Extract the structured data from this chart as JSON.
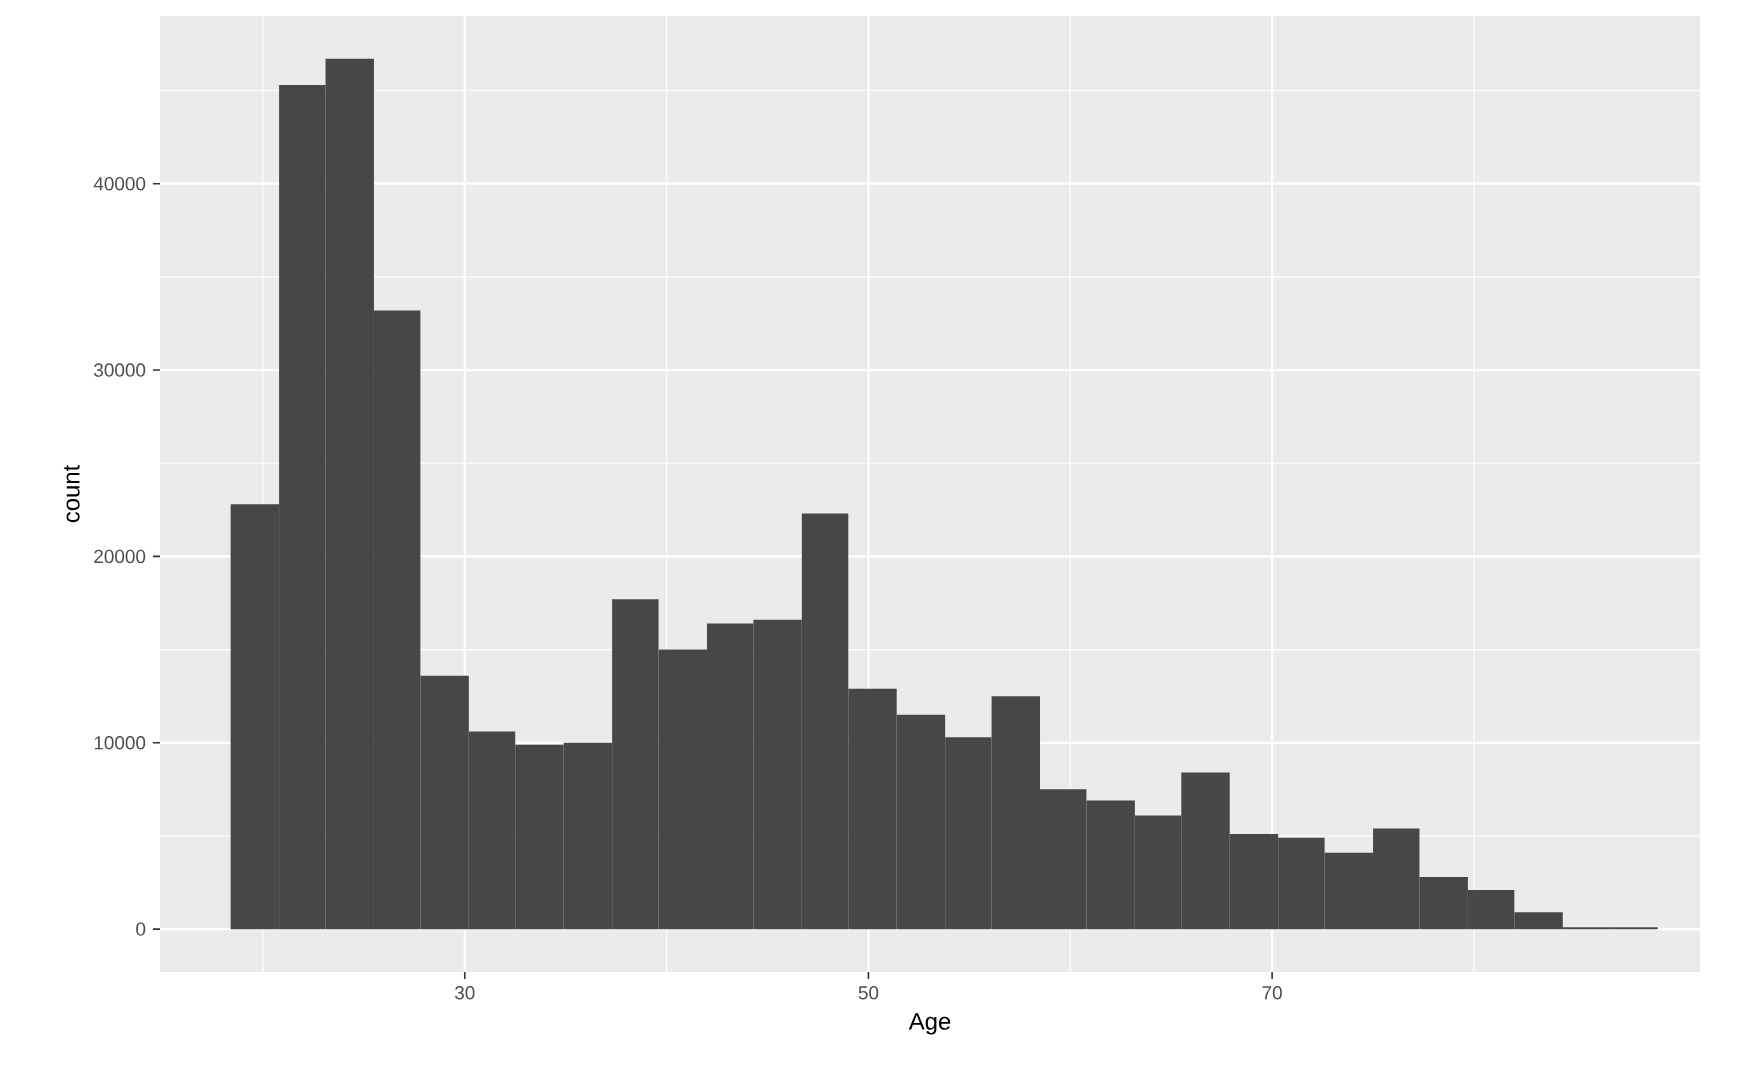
{
  "chart_data": {
    "type": "histogram",
    "xlabel": "Age",
    "ylabel": "count",
    "bins": [
      18.4,
      20.8,
      23.1,
      25.5,
      27.8,
      30.2,
      32.5,
      34.9,
      37.3,
      39.6,
      42.0,
      44.3,
      46.7,
      49.0,
      51.4,
      53.8,
      56.1,
      58.5,
      60.8,
      63.2,
      65.5,
      67.9,
      70.3,
      72.6,
      75.0,
      77.3,
      79.7,
      82.0,
      84.4,
      86.8,
      89.1
    ],
    "values": [
      22800,
      45300,
      46700,
      33200,
      13600,
      10600,
      9900,
      10000,
      17700,
      15000,
      16400,
      16600,
      22300,
      12900,
      11500,
      10300,
      12500,
      7500,
      6900,
      6100,
      8400,
      5100,
      4900,
      4100,
      5400,
      2800,
      2100,
      900,
      100,
      100
    ],
    "color": "#474747",
    "xlim": [
      14.9,
      91.2
    ],
    "ylim": [
      -2300,
      49000
    ],
    "xticks": [
      30,
      50,
      70
    ],
    "yticks": [
      0,
      10000,
      20000,
      30000,
      40000
    ],
    "grid": true
  }
}
